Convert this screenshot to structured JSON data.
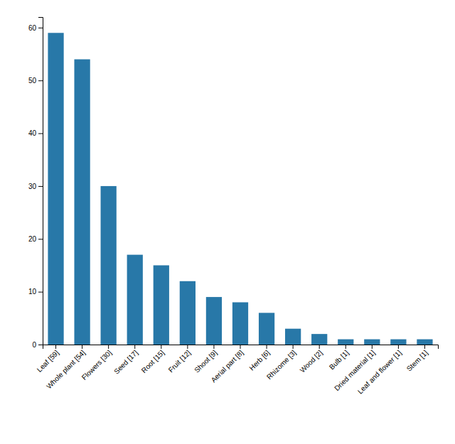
{
  "chart_data": {
    "type": "bar",
    "categories": [
      "Leaf [59]",
      "Whole plant [54]",
      "Flowers [30]",
      "Seed [17]",
      "Root [15]",
      "Fruit [12]",
      "Shoot [9]",
      "Aerial part [8]",
      "Herb [6]",
      "Rhizome [3]",
      "Wood [2]",
      "Bulb [1]",
      "Dried material [1]",
      "Leaf and flower [1]",
      "Stem [1]"
    ],
    "values": [
      59,
      54,
      30,
      17,
      15,
      12,
      9,
      8,
      6,
      3,
      2,
      1,
      1,
      1,
      1
    ],
    "color": "#2878a8",
    "ylim": [
      0,
      62
    ],
    "yticks": [
      0,
      10,
      20,
      30,
      40,
      50,
      60
    ],
    "grid": false
  }
}
